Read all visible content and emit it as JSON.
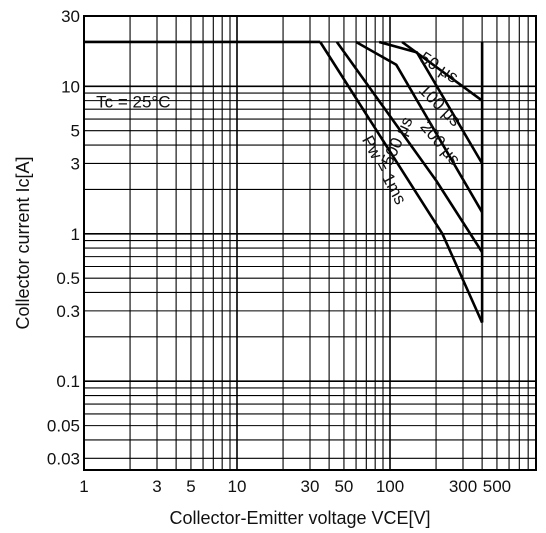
{
  "chart_data": {
    "type": "line",
    "title": "",
    "xlabel": "Collector-Emitter voltage VCE[V]",
    "ylabel": "Collector current   Ic[A]",
    "xscale": "log",
    "yscale": "log",
    "xlim": [
      1,
      900
    ],
    "ylim": [
      0.025,
      30
    ],
    "x_ticks": [
      1,
      3,
      5,
      10,
      30,
      50,
      100,
      300,
      500
    ],
    "x_tick_labels": [
      "1",
      "3",
      "5",
      "10",
      "30",
      "50",
      "100",
      "300",
      "500"
    ],
    "y_ticks": [
      0.03,
      0.05,
      0.1,
      0.3,
      0.5,
      1,
      3,
      5,
      10,
      30
    ],
    "y_tick_labels": [
      "0.03",
      "0.05",
      "0.1",
      "0.3",
      "0.5",
      "1",
      "3",
      "5",
      "10",
      "30"
    ],
    "grid": true,
    "annotation": "Tc = 25°C",
    "series": [
      {
        "name": "50 μs",
        "points": [
          [
            120,
            20
          ],
          [
            400,
            8
          ]
        ]
      },
      {
        "name": "100 μs",
        "points": [
          [
            85,
            20
          ],
          [
            150,
            17
          ],
          [
            400,
            3
          ]
        ]
      },
      {
        "name": "200 μs",
        "points": [
          [
            60,
            20
          ],
          [
            110,
            14
          ],
          [
            400,
            1.4
          ]
        ]
      },
      {
        "name": "500 μs",
        "points": [
          [
            45,
            20
          ],
          [
            200,
            2.3
          ],
          [
            400,
            0.75
          ]
        ]
      },
      {
        "name": "Pw = 1ms",
        "points": [
          [
            35,
            20
          ],
          [
            220,
            1.0
          ],
          [
            400,
            0.25
          ]
        ]
      }
    ]
  }
}
